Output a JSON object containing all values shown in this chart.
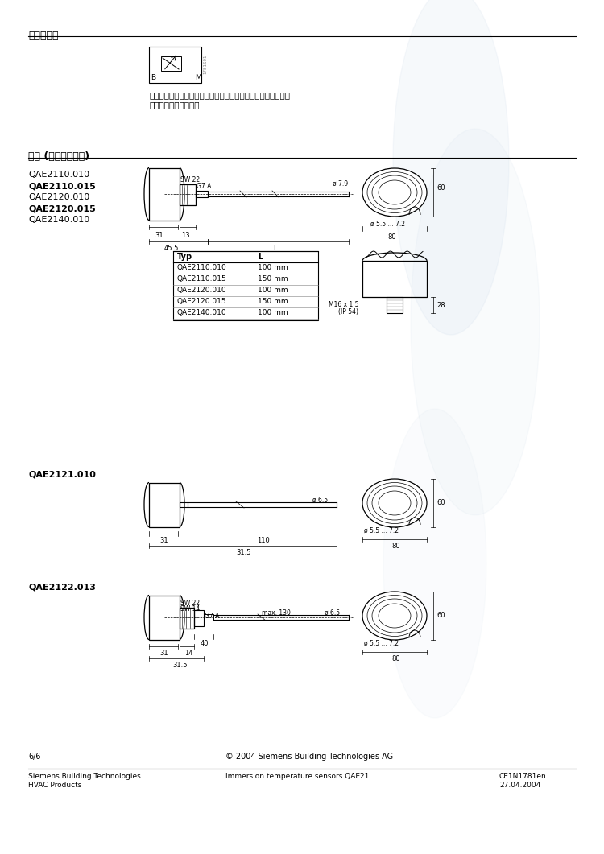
{
  "title_section1": "内部接线图",
  "title_section2": "尺寸 (以毫米为单位)",
  "wiring_text1": "技术资料中所有类型插入式温度传感器的内部接线图完全相同。",
  "wiring_text2": "连接线可以相互交换。",
  "models_group1": [
    "QAE2110.010",
    "QAE2110.015",
    "QAE2120.010",
    "QAE2120.015",
    "QAE2140.010"
  ],
  "model_group2": "QAE2121.010",
  "model_group3": "QAE2122.013",
  "table_headers": [
    "Typ",
    "L"
  ],
  "table_rows": [
    [
      "QAE2110.010",
      "100 mm"
    ],
    [
      "QAE2110.015",
      "150 mm"
    ],
    [
      "QAE2120.010",
      "100 mm"
    ],
    [
      "QAE2120.015",
      "150 mm"
    ],
    [
      "QAE2140.010",
      "100 mm"
    ]
  ],
  "footer_left1": "Siemens Building Technologies",
  "footer_left2": "HVAC Products",
  "footer_center": "Immersion temperature sensors QAE21...",
  "footer_copyright": "© 2004 Siemens Building Technologies AG",
  "footer_page": "6/6",
  "footer_right1": "CE1N1781en",
  "footer_right2": "27.04.2004",
  "bg_color": "#ffffff",
  "line_color": "#000000",
  "dim_color": "#333333",
  "watermark_color": "#c8d8e8"
}
